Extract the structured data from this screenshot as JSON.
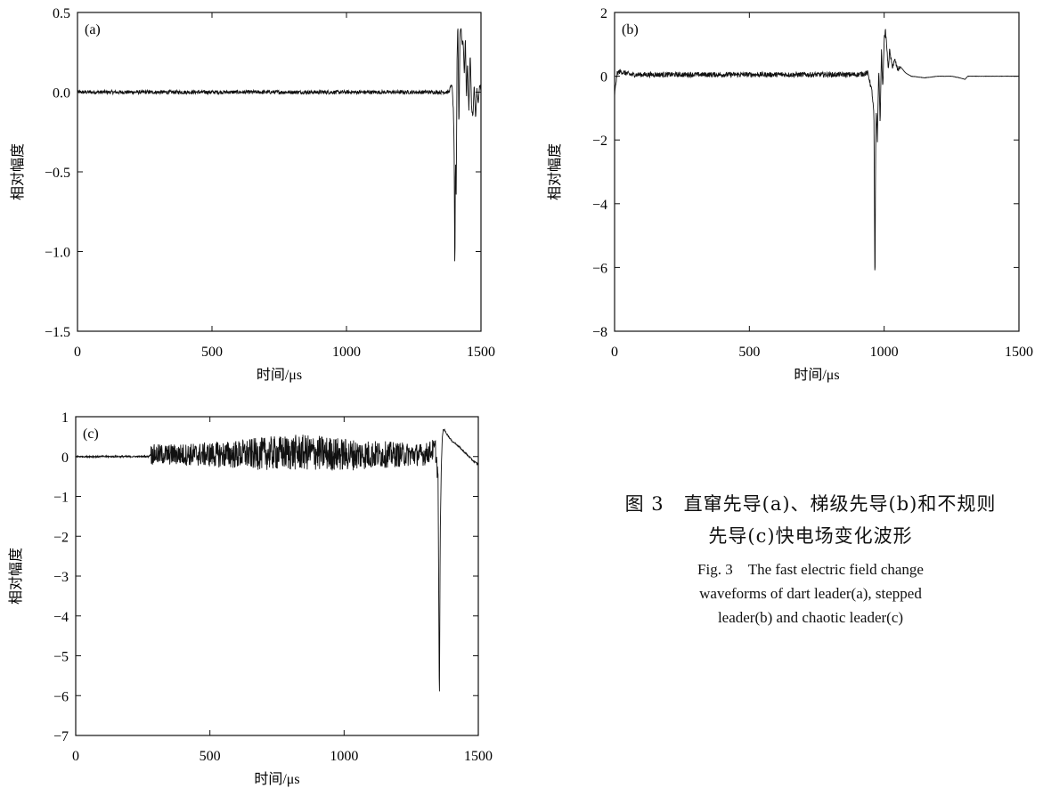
{
  "chart_data": [
    {
      "type": "line",
      "panel_label": "(a)",
      "xlabel": "时间/μs",
      "ylabel": "相对幅度",
      "xlim": [
        0,
        1500
      ],
      "ylim": [
        -1.5,
        0.5
      ],
      "xticks": [
        0,
        500,
        1000,
        1500
      ],
      "xtick_labels": [
        "0",
        "500",
        "1000",
        "1500"
      ],
      "yticks": [
        -1.5,
        -1.0,
        -0.5,
        0.0,
        0.5
      ],
      "ytick_labels": [
        "−1.5",
        "−1.0",
        "−0.5",
        "0.0",
        "0.5"
      ],
      "series": [
        {
          "x": [
            0,
            1380,
            1392,
            1397,
            1400,
            1403,
            1405,
            1408,
            1411,
            1414,
            1418,
            1422,
            1426,
            1430,
            1434,
            1438,
            1442,
            1446,
            1450,
            1455,
            1460,
            1465,
            1470,
            1475,
            1480,
            1485,
            1490,
            1495,
            1500
          ],
          "y": [
            0.0,
            0.0,
            0.05,
            -0.1,
            -0.3,
            -1.22,
            -0.4,
            -0.65,
            0.2,
            0.45,
            -0.25,
            0.38,
            0.4,
            0.3,
            0.32,
            0.1,
            0.35,
            -0.05,
            0.2,
            -0.12,
            0.25,
            -0.1,
            -0.15,
            0.05,
            -0.18,
            0.02,
            -0.08,
            0.05,
            0.0
          ],
          "noise": 0.012
        }
      ],
      "grid": false
    },
    {
      "type": "line",
      "panel_label": "(b)",
      "xlabel": "时间/μs",
      "ylabel": "相对幅度",
      "xlim": [
        0,
        1500
      ],
      "ylim": [
        -8,
        2
      ],
      "xticks": [
        0,
        500,
        1000,
        1500
      ],
      "xtick_labels": [
        "0",
        "500",
        "1000",
        "1500"
      ],
      "yticks": [
        -8,
        -6,
        -4,
        -2,
        0,
        2
      ],
      "ytick_labels": [
        "−8",
        "−6",
        "−4",
        "−2",
        "0",
        "2"
      ],
      "series": [
        {
          "x": [
            0,
            5,
            10,
            20,
            40,
            60,
            900,
            940,
            955,
            962,
            966,
            968,
            971,
            975,
            980,
            985,
            990,
            995,
            1000,
            1005,
            1010,
            1015,
            1020,
            1030,
            1040,
            1050,
            1060,
            1080,
            1100,
            1150,
            1200,
            1250,
            1280,
            1300,
            1310,
            1350,
            1400,
            1500
          ],
          "y": [
            -0.6,
            -0.2,
            0.1,
            0.15,
            0.1,
            0.05,
            0.05,
            0.1,
            -0.5,
            -1.2,
            -7.0,
            -2.6,
            -1.0,
            -2.0,
            0.3,
            -1.5,
            0.8,
            -0.4,
            1.2,
            1.4,
            0.9,
            0.2,
            0.8,
            0.3,
            0.5,
            0.2,
            0.3,
            0.1,
            0.0,
            -0.05,
            0.0,
            0.0,
            -0.05,
            -0.1,
            0.0,
            0.0,
            0.0,
            0.0
          ],
          "noise_until": 1060,
          "noise": 0.08
        }
      ],
      "grid": false
    },
    {
      "type": "line",
      "panel_label": "(c)",
      "xlabel": "时间/μs",
      "ylabel": "相对幅度",
      "xlim": [
        0,
        1500
      ],
      "ylim": [
        -7,
        1
      ],
      "xticks": [
        0,
        500,
        1000,
        1500
      ],
      "xtick_labels": [
        "0",
        "500",
        "1000",
        "1500"
      ],
      "yticks": [
        -7,
        -6,
        -5,
        -4,
        -3,
        -2,
        -1,
        0,
        1
      ],
      "ytick_labels": [
        "−7",
        "−6",
        "−5",
        "−4",
        "−3",
        "−2",
        "−1",
        "0",
        "1"
      ],
      "series": [
        {
          "x": [
            0,
            270,
            280,
            600,
            800,
            880,
            1000,
            1300,
            1340,
            1350,
            1355,
            1358,
            1362,
            1366,
            1370,
            1380,
            1390,
            1400,
            1420,
            1450,
            1480,
            1500
          ],
          "y": [
            0.0,
            0.0,
            0.05,
            0.05,
            0.1,
            0.1,
            0.05,
            0.05,
            0.2,
            -0.5,
            -6.4,
            -2.0,
            -0.3,
            0.5,
            0.7,
            0.6,
            0.5,
            0.4,
            0.3,
            0.1,
            -0.1,
            -0.2
          ],
          "burst_from": 280,
          "burst_until": 1350,
          "burst_amp": 0.45,
          "noise": 0.02
        }
      ],
      "grid": false
    }
  ],
  "caption": {
    "zh_line1": "图 3　直窜先导(a)、梯级先导(b)和不规则",
    "zh_line2": "先导(c)快电场变化波形",
    "en_line1": "Fig. 3　The fast electric field change",
    "en_line2": "waveforms of dart leader(a), stepped",
    "en_line3": "leader(b) and chaotic leader(c)"
  }
}
